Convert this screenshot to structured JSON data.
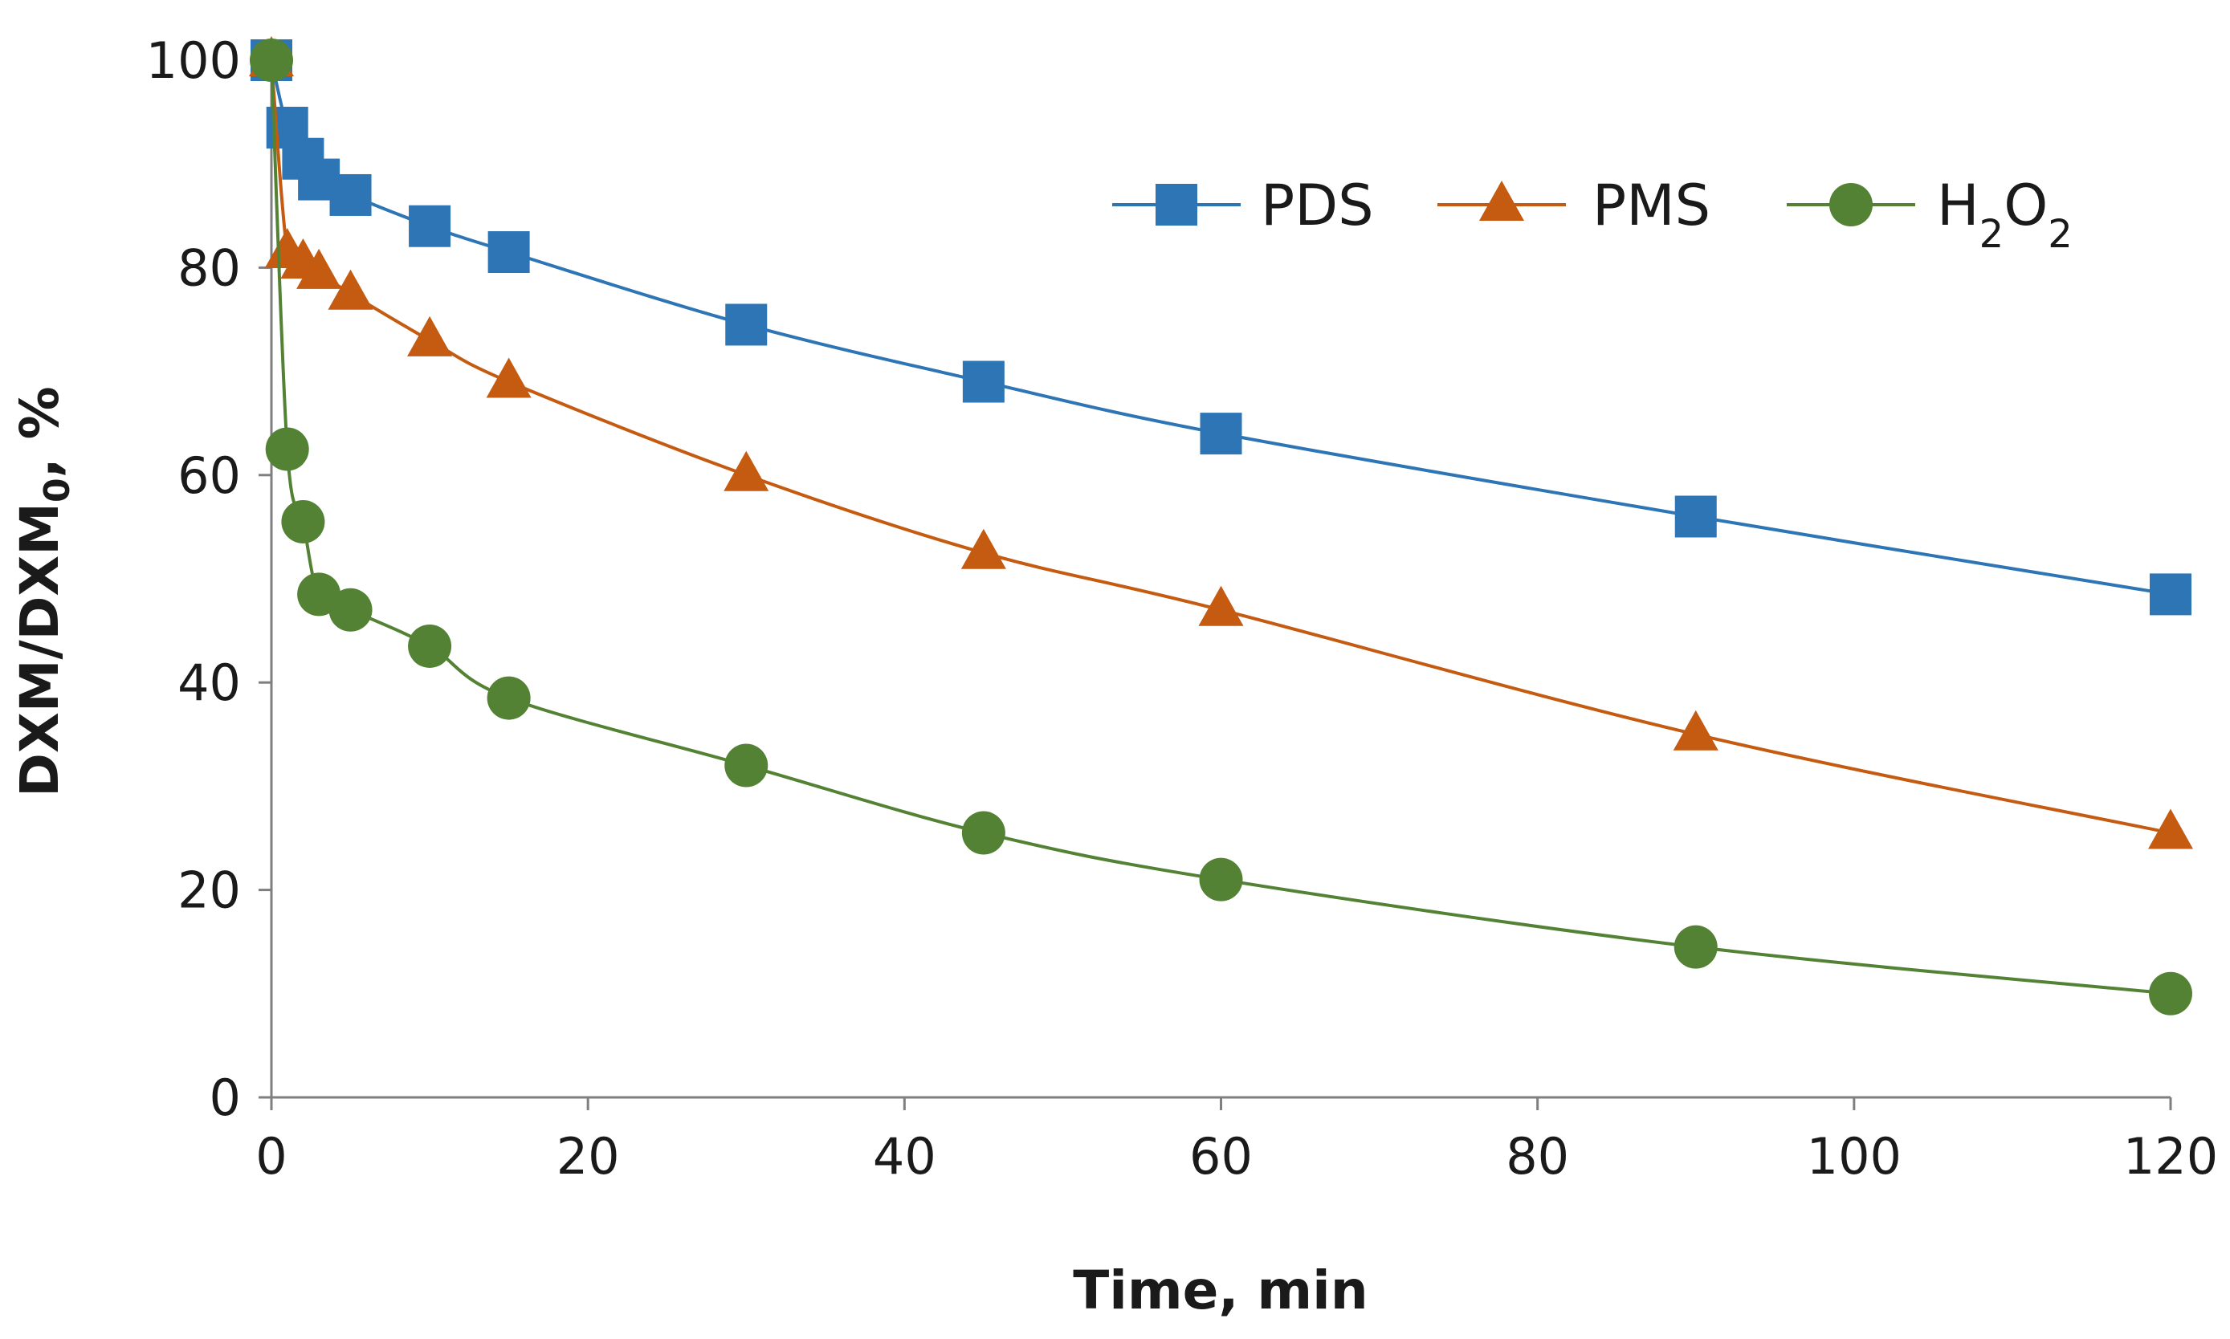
{
  "chart_data": {
    "type": "line",
    "title": "",
    "xlabel": "Time, min",
    "ylabel_parts": {
      "main": "DXM/DXM",
      "sub": "0",
      "tail": ", %"
    },
    "xlim": [
      0,
      120
    ],
    "ylim": [
      0,
      100
    ],
    "xticks": [
      0,
      20,
      40,
      60,
      80,
      100,
      120
    ],
    "yticks": [
      0,
      20,
      40,
      60,
      80,
      100
    ],
    "grid": false,
    "legend_position": "top-right",
    "series": [
      {
        "name": "PDS",
        "label_parts": [
          {
            "t": "PDS"
          }
        ],
        "color": "#2e75b6",
        "marker": "square",
        "x": [
          0,
          1,
          2,
          3,
          5,
          10,
          15,
          30,
          45,
          60,
          90,
          120
        ],
        "values": [
          100,
          93.5,
          90.5,
          88.5,
          87,
          84,
          81.5,
          74.5,
          69,
          64,
          56,
          48.5
        ]
      },
      {
        "name": "PMS",
        "label_parts": [
          {
            "t": "PMS"
          }
        ],
        "color": "#c55a11",
        "marker": "triangle",
        "x": [
          0,
          1,
          2,
          3,
          5,
          10,
          15,
          30,
          45,
          60,
          90,
          120
        ],
        "values": [
          100,
          81.5,
          80.5,
          79.5,
          77.5,
          73,
          69,
          60,
          52.5,
          47,
          35,
          25.5
        ]
      },
      {
        "name": "H2O2",
        "label_parts": [
          {
            "t": "H"
          },
          {
            "t": "2",
            "sub": true
          },
          {
            "t": "O"
          },
          {
            "t": "2",
            "sub": true
          }
        ],
        "color": "#548235",
        "marker": "circle",
        "x": [
          0,
          1,
          2,
          3,
          5,
          10,
          15,
          30,
          45,
          60,
          90,
          120
        ],
        "values": [
          100,
          62.5,
          55.5,
          48.5,
          47,
          43.5,
          38.5,
          32,
          25.5,
          21,
          14.5,
          10
        ]
      }
    ]
  }
}
